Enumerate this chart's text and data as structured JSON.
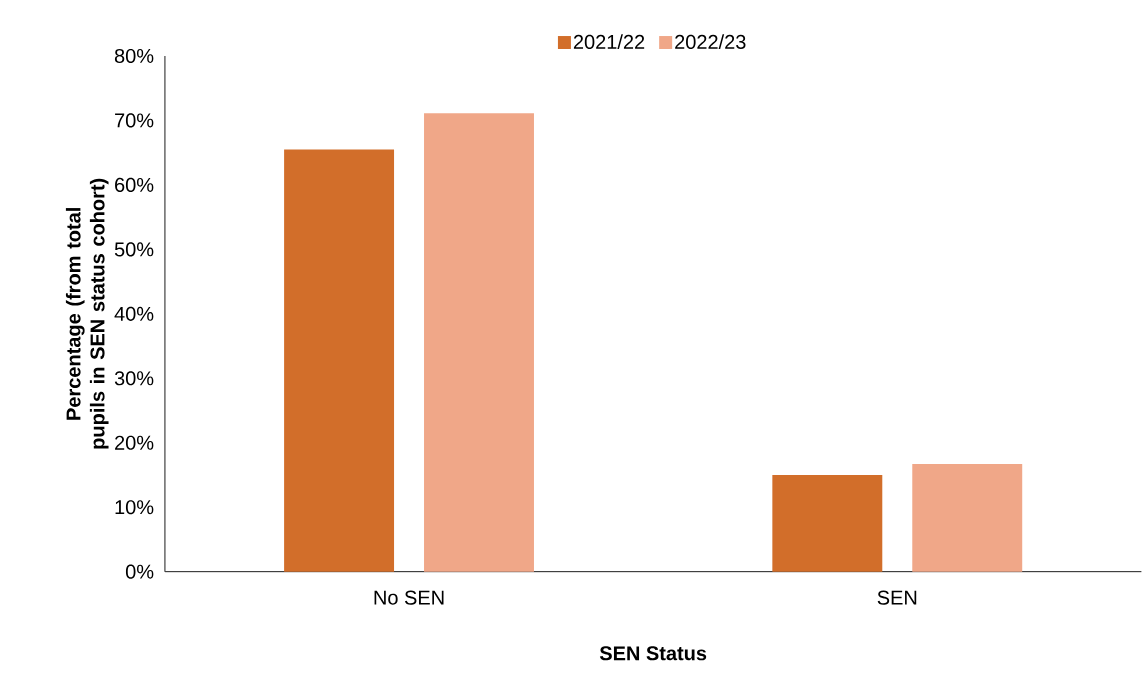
{
  "chart_data": {
    "type": "bar",
    "xlabel": "SEN Status",
    "ylabel": "Percentage (from total pupils in SEN status cohort)",
    "categories": [
      "No SEN",
      "SEN"
    ],
    "series": [
      {
        "name": "2021/22",
        "color": "#d26e2a",
        "values": [
          65.5,
          15.0
        ]
      },
      {
        "name": "2022/23",
        "color": "#f0a788",
        "values": [
          71.1,
          16.7
        ]
      }
    ],
    "ylim": [
      0,
      80
    ],
    "yticks": [
      {
        "value": 0,
        "label": "0%"
      },
      {
        "value": 10,
        "label": "10%"
      },
      {
        "value": 20,
        "label": "20%"
      },
      {
        "value": 30,
        "label": "30%"
      },
      {
        "value": 40,
        "label": "40%"
      },
      {
        "value": 50,
        "label": "50%"
      },
      {
        "value": 60,
        "label": "60%"
      },
      {
        "value": 70,
        "label": "70%"
      },
      {
        "value": 80,
        "label": "80%"
      }
    ],
    "grid": false,
    "legend": "top"
  }
}
